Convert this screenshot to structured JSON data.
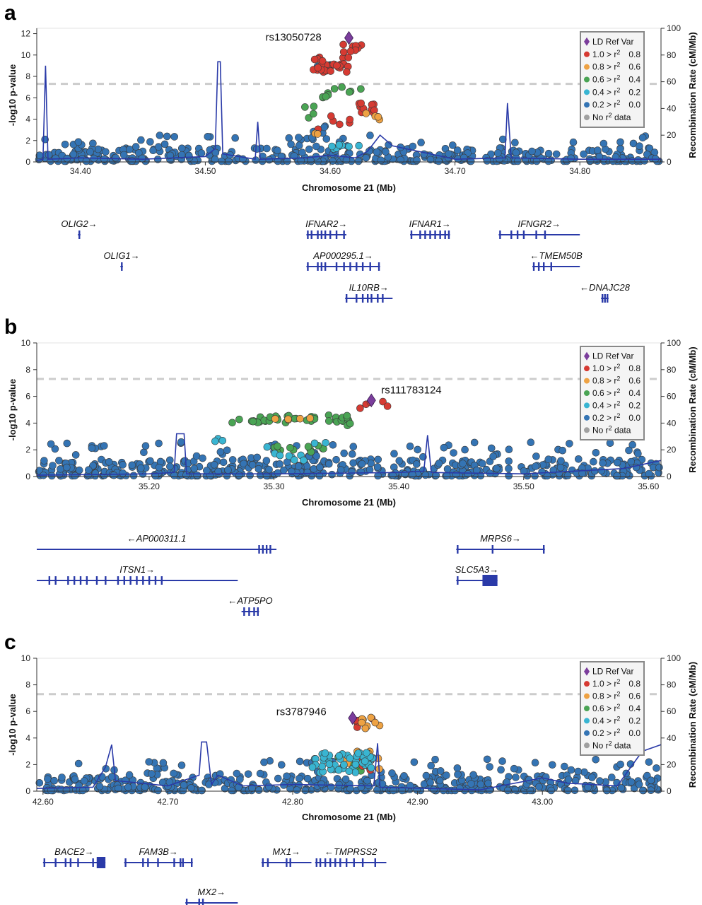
{
  "figure": {
    "legend": {
      "ref_label": "LD Ref Var",
      "bins": [
        {
          "label": "1.0 > r² ≥ 0.8",
          "lo": "1.0",
          "hi": "0.8",
          "color": "#d63a32"
        },
        {
          "label": "0.8 > r² ≥ 0.6",
          "lo": "0.8",
          "hi": "0.6",
          "color": "#eea243"
        },
        {
          "label": "0.6 > r² ≥ 0.4",
          "lo": "0.6",
          "hi": "0.4",
          "color": "#4aa454"
        },
        {
          "label": "0.4 > r² ≥ 0.2",
          "lo": "0.4",
          "hi": "0.2",
          "color": "#39b5d2"
        },
        {
          "label": "0.2 > r² ≥ 0.0",
          "lo": "0.2",
          "hi": "0.0",
          "color": "#3474b4"
        }
      ],
      "no_data_label": "No r² data",
      "no_data_color": "#a0a0a0",
      "ref_color": "#7b3d9c"
    },
    "colors": {
      "recomb_line": "#2a3aa8",
      "threshold": "#cccccc",
      "gene": "#2a3aa8"
    }
  },
  "chart_data": [
    {
      "type": "scatter",
      "panel": "a",
      "xlabel": "Chromosome 21 (Mb)",
      "ylabel": "-log10 p-value",
      "y2label": "Recombination Rate (cM/Mb)",
      "xlim": [
        34.365,
        34.865
      ],
      "ylim": [
        0,
        12.5
      ],
      "y2lim": [
        0,
        100
      ],
      "xticks": [
        "34.40",
        "34.50",
        "34.60",
        "34.70",
        "34.80"
      ],
      "yticks": [
        "0",
        "2",
        "4",
        "6",
        "8",
        "10",
        "12"
      ],
      "y2ticks": [
        "0",
        "20",
        "40",
        "60",
        "80",
        "100"
      ],
      "threshold": 7.3,
      "lead_snp": {
        "name": "rs13050728",
        "x": 34.615,
        "y": 11.6
      },
      "recombination": [
        [
          34.365,
          1
        ],
        [
          34.37,
          2
        ],
        [
          34.372,
          72
        ],
        [
          34.374,
          2
        ],
        [
          34.4,
          3
        ],
        [
          34.45,
          2
        ],
        [
          34.5,
          4
        ],
        [
          34.508,
          10
        ],
        [
          34.51,
          75
        ],
        [
          34.512,
          75
        ],
        [
          34.514,
          6
        ],
        [
          34.54,
          2
        ],
        [
          34.542,
          30
        ],
        [
          34.544,
          2
        ],
        [
          34.58,
          3
        ],
        [
          34.6,
          5
        ],
        [
          34.62,
          3
        ],
        [
          34.63,
          8
        ],
        [
          34.64,
          20
        ],
        [
          34.65,
          12
        ],
        [
          34.7,
          2
        ],
        [
          34.74,
          3
        ],
        [
          34.742,
          44
        ],
        [
          34.745,
          3
        ],
        [
          34.8,
          2
        ],
        [
          34.865,
          2
        ]
      ],
      "clusters": [
        {
          "xr": [
            34.585,
            34.615
          ],
          "yr": [
            8.4,
            9.8
          ],
          "n": 30,
          "color": "#d63a32"
        },
        {
          "xr": [
            34.61,
            34.625
          ],
          "yr": [
            10.2,
            11.3
          ],
          "n": 8,
          "color": "#d63a32"
        },
        {
          "xr": [
            34.62,
            34.64
          ],
          "yr": [
            4.6,
            5.6
          ],
          "n": 10,
          "color": "#d63a32"
        },
        {
          "xr": [
            34.59,
            34.62
          ],
          "yr": [
            3.0,
            4.5
          ],
          "n": 6,
          "color": "#d63a32"
        },
        {
          "xr": [
            34.59,
            34.625
          ],
          "yr": [
            6.0,
            7.0
          ],
          "n": 10,
          "color": "#4aa454"
        },
        {
          "xr": [
            34.578,
            34.59
          ],
          "yr": [
            4.0,
            5.2
          ],
          "n": 4,
          "color": "#4aa454"
        },
        {
          "xr": [
            34.625,
            34.64
          ],
          "yr": [
            3.8,
            4.6
          ],
          "n": 4,
          "color": "#eea243"
        },
        {
          "xr": [
            34.58,
            34.59
          ],
          "yr": [
            2.4,
            3.0
          ],
          "n": 2,
          "color": "#eea243"
        },
        {
          "xr": [
            34.6,
            34.63
          ],
          "yr": [
            1.0,
            2.5
          ],
          "n": 8,
          "color": "#39b5d2"
        },
        {
          "xr": [
            34.585,
            34.605
          ],
          "yr": [
            8.8,
            9.6
          ],
          "n": 4,
          "color": "#3474b4"
        },
        {
          "xr": [
            34.575,
            34.6
          ],
          "yr": [
            1.0,
            3.5
          ],
          "n": 12,
          "color": "#3474b4"
        },
        {
          "xr": [
            34.365,
            34.865
          ],
          "yr": [
            0.0,
            1.3
          ],
          "n": 380,
          "color": "#3474b4"
        },
        {
          "xr": [
            34.365,
            34.865
          ],
          "yr": [
            1.3,
            2.5
          ],
          "n": 40,
          "color": "#3474b4"
        }
      ],
      "genes": [
        {
          "name": "OLIG2→",
          "start": 34.398,
          "end": 34.4,
          "row": 0,
          "exons": [
            34.399
          ]
        },
        {
          "name": "OLIG1→",
          "start": 34.432,
          "end": 34.434,
          "row": 1,
          "exons": [
            34.433
          ]
        },
        {
          "name": "IFNAR2→",
          "start": 34.581,
          "end": 34.613,
          "row": 0,
          "exons": [
            34.582,
            34.585,
            34.59,
            34.593,
            34.596,
            34.6,
            34.605,
            34.611
          ]
        },
        {
          "name": "AP000295.1→",
          "start": 34.581,
          "end": 34.64,
          "row": 1,
          "exons": [
            34.582,
            34.59,
            34.593,
            34.596,
            34.605,
            34.611,
            34.616,
            34.621,
            34.626,
            34.632,
            34.639
          ]
        },
        {
          "name": "IL10RB→",
          "start": 34.612,
          "end": 34.65,
          "row": 2,
          "exons": [
            34.613,
            34.621,
            34.626,
            34.63,
            34.633,
            34.638,
            34.642
          ]
        },
        {
          "name": "IFNAR1→",
          "start": 34.664,
          "end": 34.696,
          "row": 0,
          "exons": [
            34.665,
            34.672,
            34.676,
            34.68,
            34.684,
            34.688,
            34.692,
            34.695
          ]
        },
        {
          "name": "IFNGR2→",
          "start": 34.735,
          "end": 34.8,
          "row": 0,
          "exons": [
            34.736,
            34.745,
            34.75,
            34.755,
            34.765,
            34.772
          ]
        },
        {
          "name": "←TMEM50B",
          "start": 34.762,
          "end": 34.8,
          "row": 1,
          "exons": [
            34.763,
            34.767,
            34.771,
            34.777
          ]
        },
        {
          "name": "←DNAJC28",
          "start": 34.817,
          "end": 34.823,
          "row": 2,
          "exons": [
            34.818,
            34.82,
            34.822
          ]
        }
      ]
    },
    {
      "type": "scatter",
      "panel": "b",
      "xlabel": "Chromosome 21 (Mb)",
      "ylabel": "-log10 p-value",
      "y2label": "Recombination Rate (cM/Mb)",
      "xlim": [
        35.11,
        35.61
      ],
      "ylim": [
        0,
        10
      ],
      "y2lim": [
        0,
        100
      ],
      "xticks": [
        "35.20",
        "35.30",
        "35.40",
        "35.50",
        "35.60"
      ],
      "yticks": [
        "0",
        "2",
        "4",
        "6",
        "8",
        "10"
      ],
      "y2ticks": [
        "0",
        "20",
        "40",
        "60",
        "80",
        "100"
      ],
      "threshold": 7.3,
      "lead_snp": {
        "name": "rs111783124",
        "x": 35.378,
        "y": 5.7
      },
      "recombination": [
        [
          35.11,
          1
        ],
        [
          35.2,
          2
        ],
        [
          35.22,
          3
        ],
        [
          35.222,
          32
        ],
        [
          35.228,
          32
        ],
        [
          35.23,
          2
        ],
        [
          35.3,
          2
        ],
        [
          35.4,
          3
        ],
        [
          35.42,
          4
        ],
        [
          35.423,
          31
        ],
        [
          35.426,
          3
        ],
        [
          35.5,
          2
        ],
        [
          35.58,
          6
        ],
        [
          35.61,
          12
        ]
      ],
      "clusters": [
        {
          "xr": [
            35.265,
            35.36
          ],
          "yr": [
            4.0,
            4.6
          ],
          "n": 40,
          "color": "#4aa454"
        },
        {
          "xr": [
            35.355,
            35.365
          ],
          "yr": [
            3.8,
            4.6
          ],
          "n": 4,
          "color": "#4aa454"
        },
        {
          "xr": [
            35.3,
            35.33
          ],
          "yr": [
            4.2,
            4.6
          ],
          "n": 5,
          "color": "#eea243"
        },
        {
          "xr": [
            35.29,
            35.34
          ],
          "yr": [
            1.8,
            2.4
          ],
          "n": 12,
          "color": "#4aa454"
        },
        {
          "xr": [
            35.365,
            35.395
          ],
          "yr": [
            5.1,
            5.7
          ],
          "n": 5,
          "color": "#d63a32"
        },
        {
          "xr": [
            35.245,
            35.26
          ],
          "yr": [
            2.6,
            3.3
          ],
          "n": 3,
          "color": "#39b5d2"
        },
        {
          "xr": [
            35.28,
            35.35
          ],
          "yr": [
            1.2,
            2.6
          ],
          "n": 10,
          "color": "#39b5d2"
        },
        {
          "xr": [
            35.11,
            35.61
          ],
          "yr": [
            0.0,
            1.3
          ],
          "n": 420,
          "color": "#3474b4"
        },
        {
          "xr": [
            35.11,
            35.61
          ],
          "yr": [
            1.3,
            2.6
          ],
          "n": 60,
          "color": "#3474b4"
        }
      ],
      "genes": [
        {
          "name": "←AP000311.1",
          "start": 35.11,
          "end": 35.302,
          "row": 0,
          "exons": [
            35.288,
            35.291,
            35.294,
            35.297
          ]
        },
        {
          "name": "ITSN1→",
          "start": 35.11,
          "end": 35.271,
          "row": 1,
          "exons": [
            35.12,
            35.125,
            35.135,
            35.14,
            35.145,
            35.15,
            35.158,
            35.165,
            35.175,
            35.18,
            35.185,
            35.19,
            35.195,
            35.2,
            35.205,
            35.21
          ]
        },
        {
          "name": "←ATP5PO",
          "start": 35.274,
          "end": 35.288,
          "row": 2,
          "exons": [
            35.276,
            35.28,
            35.284,
            35.287
          ]
        },
        {
          "name": "MRPS6→",
          "start": 35.446,
          "end": 35.517,
          "row": 0,
          "exons": [
            35.447,
            35.475,
            35.516
          ]
        },
        {
          "name": "SLC5A3→",
          "start": 35.446,
          "end": 35.479,
          "row": 1,
          "exons": [
            35.447
          ],
          "block": [
            35.467,
            35.479
          ]
        }
      ]
    },
    {
      "type": "scatter",
      "panel": "c",
      "xlabel": "Chromosome 21 (Mb)",
      "ylabel": "-log10 p-value",
      "y2label": "Recombination Rate (cM/Mb)",
      "xlim": [
        42.595,
        43.095
      ],
      "ylim": [
        0,
        10
      ],
      "y2lim": [
        0,
        100
      ],
      "xticks": [
        "42.60",
        "42.70",
        "42.80",
        "42.90",
        "43.00"
      ],
      "yticks": [
        "0",
        "2",
        "4",
        "6",
        "8",
        "10"
      ],
      "y2ticks": [
        "0",
        "20",
        "40",
        "60",
        "80",
        "100"
      ],
      "threshold": 7.3,
      "lead_snp": {
        "name": "rs3787946",
        "x": 42.848,
        "y": 5.5
      },
      "recombination": [
        [
          42.595,
          2
        ],
        [
          42.64,
          3
        ],
        [
          42.65,
          18
        ],
        [
          42.655,
          35
        ],
        [
          42.658,
          8
        ],
        [
          42.7,
          4
        ],
        [
          42.725,
          12
        ],
        [
          42.727,
          37
        ],
        [
          42.731,
          37
        ],
        [
          42.735,
          5
        ],
        [
          42.74,
          12
        ],
        [
          42.76,
          4
        ],
        [
          42.8,
          5
        ],
        [
          42.865,
          4
        ],
        [
          42.868,
          36
        ],
        [
          42.87,
          3
        ],
        [
          42.95,
          1
        ],
        [
          43.0,
          10
        ],
        [
          43.02,
          6
        ],
        [
          43.06,
          4
        ],
        [
          43.08,
          30
        ],
        [
          43.095,
          35
        ]
      ],
      "clusters": [
        {
          "xr": [
            42.845,
            42.865
          ],
          "yr": [
            4.8,
            5.6
          ],
          "n": 8,
          "color": "#d63a32"
        },
        {
          "xr": [
            42.855,
            42.87
          ],
          "yr": [
            4.6,
            5.6
          ],
          "n": 8,
          "color": "#eea243"
        },
        {
          "xr": [
            42.84,
            42.87
          ],
          "yr": [
            1.6,
            3.3
          ],
          "n": 18,
          "color": "#eea243"
        },
        {
          "xr": [
            42.83,
            42.865
          ],
          "yr": [
            1.5,
            2.6
          ],
          "n": 10,
          "color": "#4aa454"
        },
        {
          "xr": [
            42.845,
            42.865
          ],
          "yr": [
            1.5,
            2.5
          ],
          "n": 6,
          "color": "#d63a32"
        },
        {
          "xr": [
            42.815,
            42.865
          ],
          "yr": [
            1.4,
            3.0
          ],
          "n": 50,
          "color": "#39b5d2"
        },
        {
          "xr": [
            42.595,
            43.095
          ],
          "yr": [
            0.0,
            1.2
          ],
          "n": 400,
          "color": "#3474b4"
        },
        {
          "xr": [
            42.595,
            43.095
          ],
          "yr": [
            1.2,
            2.4
          ],
          "n": 60,
          "color": "#3474b4"
        }
      ],
      "genes": [
        {
          "name": "BACE2→",
          "start": 42.6,
          "end": 42.65,
          "row": 0,
          "exons": [
            42.601,
            42.61,
            42.618,
            42.622,
            42.628,
            42.64
          ],
          "block": [
            42.643,
            42.65
          ]
        },
        {
          "name": "FAM3B→",
          "start": 42.665,
          "end": 42.72,
          "row": 0,
          "exons": [
            42.666,
            42.68,
            42.684,
            42.692,
            42.705,
            42.71,
            42.712,
            42.719
          ]
        },
        {
          "name": "MX2→",
          "start": 42.714,
          "end": 42.756,
          "row": 1,
          "exons": [
            42.715,
            42.725,
            42.728
          ]
        },
        {
          "name": "MX1→",
          "start": 42.775,
          "end": 42.815,
          "row": 0,
          "exons": [
            42.776,
            42.78,
            42.795,
            42.798
          ]
        },
        {
          "name": "←TMPRSS2",
          "start": 42.818,
          "end": 42.875,
          "row": 0,
          "exons": [
            42.819,
            42.822,
            42.826,
            42.83,
            42.834,
            42.838,
            42.843,
            42.849,
            42.856,
            42.866
          ]
        }
      ]
    }
  ]
}
